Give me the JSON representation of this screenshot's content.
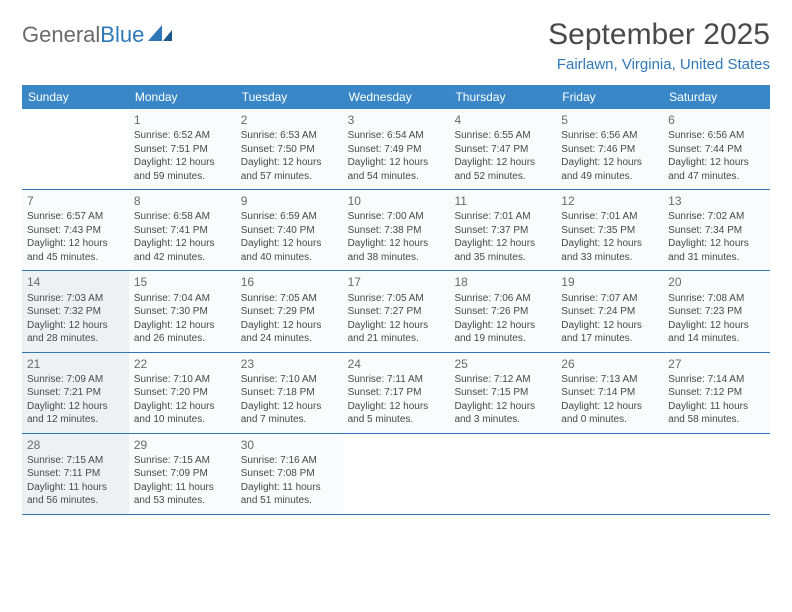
{
  "brand": {
    "name_part1": "General",
    "name_part2": "Blue"
  },
  "title": "September 2025",
  "location": "Fairlawn, Virginia, United States",
  "colors": {
    "header_bg": "#3a87c7",
    "accent": "#2f78b7",
    "text": "#4a4a4a",
    "light_text": "#6a6a6a",
    "cell_bg": "#fafbfc",
    "shaded_bg": "#eef1f4",
    "border": "#2f78b7"
  },
  "fonts": {
    "title_size": 30,
    "location_size": 15,
    "weekday_size": 12,
    "daynum_size": 12,
    "info_size": 10
  },
  "weekdays": [
    "Sunday",
    "Monday",
    "Tuesday",
    "Wednesday",
    "Thursday",
    "Friday",
    "Saturday"
  ],
  "weeks": [
    [
      {
        "empty": true
      },
      {
        "day": "1",
        "sunrise": "Sunrise: 6:52 AM",
        "sunset": "Sunset: 7:51 PM",
        "daylight": "Daylight: 12 hours and 59 minutes."
      },
      {
        "day": "2",
        "sunrise": "Sunrise: 6:53 AM",
        "sunset": "Sunset: 7:50 PM",
        "daylight": "Daylight: 12 hours and 57 minutes."
      },
      {
        "day": "3",
        "sunrise": "Sunrise: 6:54 AM",
        "sunset": "Sunset: 7:49 PM",
        "daylight": "Daylight: 12 hours and 54 minutes."
      },
      {
        "day": "4",
        "sunrise": "Sunrise: 6:55 AM",
        "sunset": "Sunset: 7:47 PM",
        "daylight": "Daylight: 12 hours and 52 minutes."
      },
      {
        "day": "5",
        "sunrise": "Sunrise: 6:56 AM",
        "sunset": "Sunset: 7:46 PM",
        "daylight": "Daylight: 12 hours and 49 minutes."
      },
      {
        "day": "6",
        "sunrise": "Sunrise: 6:56 AM",
        "sunset": "Sunset: 7:44 PM",
        "daylight": "Daylight: 12 hours and 47 minutes."
      }
    ],
    [
      {
        "day": "7",
        "sunrise": "Sunrise: 6:57 AM",
        "sunset": "Sunset: 7:43 PM",
        "daylight": "Daylight: 12 hours and 45 minutes."
      },
      {
        "day": "8",
        "sunrise": "Sunrise: 6:58 AM",
        "sunset": "Sunset: 7:41 PM",
        "daylight": "Daylight: 12 hours and 42 minutes."
      },
      {
        "day": "9",
        "sunrise": "Sunrise: 6:59 AM",
        "sunset": "Sunset: 7:40 PM",
        "daylight": "Daylight: 12 hours and 40 minutes."
      },
      {
        "day": "10",
        "sunrise": "Sunrise: 7:00 AM",
        "sunset": "Sunset: 7:38 PM",
        "daylight": "Daylight: 12 hours and 38 minutes."
      },
      {
        "day": "11",
        "sunrise": "Sunrise: 7:01 AM",
        "sunset": "Sunset: 7:37 PM",
        "daylight": "Daylight: 12 hours and 35 minutes."
      },
      {
        "day": "12",
        "sunrise": "Sunrise: 7:01 AM",
        "sunset": "Sunset: 7:35 PM",
        "daylight": "Daylight: 12 hours and 33 minutes."
      },
      {
        "day": "13",
        "sunrise": "Sunrise: 7:02 AM",
        "sunset": "Sunset: 7:34 PM",
        "daylight": "Daylight: 12 hours and 31 minutes."
      }
    ],
    [
      {
        "day": "14",
        "shaded": true,
        "sunrise": "Sunrise: 7:03 AM",
        "sunset": "Sunset: 7:32 PM",
        "daylight": "Daylight: 12 hours and 28 minutes."
      },
      {
        "day": "15",
        "sunrise": "Sunrise: 7:04 AM",
        "sunset": "Sunset: 7:30 PM",
        "daylight": "Daylight: 12 hours and 26 minutes."
      },
      {
        "day": "16",
        "sunrise": "Sunrise: 7:05 AM",
        "sunset": "Sunset: 7:29 PM",
        "daylight": "Daylight: 12 hours and 24 minutes."
      },
      {
        "day": "17",
        "sunrise": "Sunrise: 7:05 AM",
        "sunset": "Sunset: 7:27 PM",
        "daylight": "Daylight: 12 hours and 21 minutes."
      },
      {
        "day": "18",
        "sunrise": "Sunrise: 7:06 AM",
        "sunset": "Sunset: 7:26 PM",
        "daylight": "Daylight: 12 hours and 19 minutes."
      },
      {
        "day": "19",
        "sunrise": "Sunrise: 7:07 AM",
        "sunset": "Sunset: 7:24 PM",
        "daylight": "Daylight: 12 hours and 17 minutes."
      },
      {
        "day": "20",
        "sunrise": "Sunrise: 7:08 AM",
        "sunset": "Sunset: 7:23 PM",
        "daylight": "Daylight: 12 hours and 14 minutes."
      }
    ],
    [
      {
        "day": "21",
        "shaded": true,
        "sunrise": "Sunrise: 7:09 AM",
        "sunset": "Sunset: 7:21 PM",
        "daylight": "Daylight: 12 hours and 12 minutes."
      },
      {
        "day": "22",
        "sunrise": "Sunrise: 7:10 AM",
        "sunset": "Sunset: 7:20 PM",
        "daylight": "Daylight: 12 hours and 10 minutes."
      },
      {
        "day": "23",
        "sunrise": "Sunrise: 7:10 AM",
        "sunset": "Sunset: 7:18 PM",
        "daylight": "Daylight: 12 hours and 7 minutes."
      },
      {
        "day": "24",
        "sunrise": "Sunrise: 7:11 AM",
        "sunset": "Sunset: 7:17 PM",
        "daylight": "Daylight: 12 hours and 5 minutes."
      },
      {
        "day": "25",
        "sunrise": "Sunrise: 7:12 AM",
        "sunset": "Sunset: 7:15 PM",
        "daylight": "Daylight: 12 hours and 3 minutes."
      },
      {
        "day": "26",
        "sunrise": "Sunrise: 7:13 AM",
        "sunset": "Sunset: 7:14 PM",
        "daylight": "Daylight: 12 hours and 0 minutes."
      },
      {
        "day": "27",
        "sunrise": "Sunrise: 7:14 AM",
        "sunset": "Sunset: 7:12 PM",
        "daylight": "Daylight: 11 hours and 58 minutes."
      }
    ],
    [
      {
        "day": "28",
        "shaded": true,
        "sunrise": "Sunrise: 7:15 AM",
        "sunset": "Sunset: 7:11 PM",
        "daylight": "Daylight: 11 hours and 56 minutes."
      },
      {
        "day": "29",
        "sunrise": "Sunrise: 7:15 AM",
        "sunset": "Sunset: 7:09 PM",
        "daylight": "Daylight: 11 hours and 53 minutes."
      },
      {
        "day": "30",
        "sunrise": "Sunrise: 7:16 AM",
        "sunset": "Sunset: 7:08 PM",
        "daylight": "Daylight: 11 hours and 51 minutes."
      },
      {
        "empty": true
      },
      {
        "empty": true
      },
      {
        "empty": true
      },
      {
        "empty": true
      }
    ]
  ]
}
